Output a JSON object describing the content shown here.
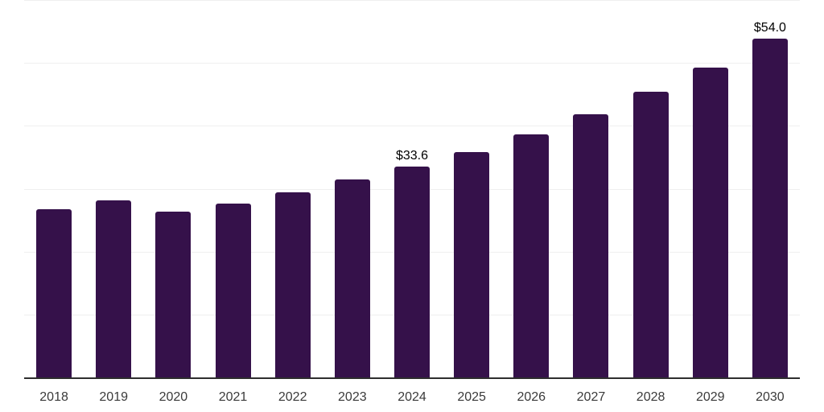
{
  "chart_data": {
    "type": "bar",
    "title": "",
    "xlabel": "",
    "ylabel": "",
    "categories": [
      "2018",
      "2019",
      "2020",
      "2021",
      "2022",
      "2023",
      "2024",
      "2025",
      "2026",
      "2027",
      "2028",
      "2029",
      "2030"
    ],
    "values": [
      26.9,
      28.3,
      26.5,
      27.8,
      29.6,
      31.6,
      33.6,
      35.9,
      38.8,
      42.0,
      45.5,
      49.4,
      54.0
    ],
    "data_labels": {
      "2024": "$33.6",
      "2030": "$54.0"
    },
    "ylim": [
      0,
      60
    ],
    "gridline_step": 10,
    "grid": "horizontal-only",
    "legend": "none",
    "y_tick_labels": "none",
    "colors": {
      "bar": "#35114a",
      "axis_line": "#2e2e2e",
      "gridline": "#efefef",
      "x_tick_label": "#3a3a3a",
      "data_label": "#000000",
      "background": "#ffffff"
    }
  }
}
